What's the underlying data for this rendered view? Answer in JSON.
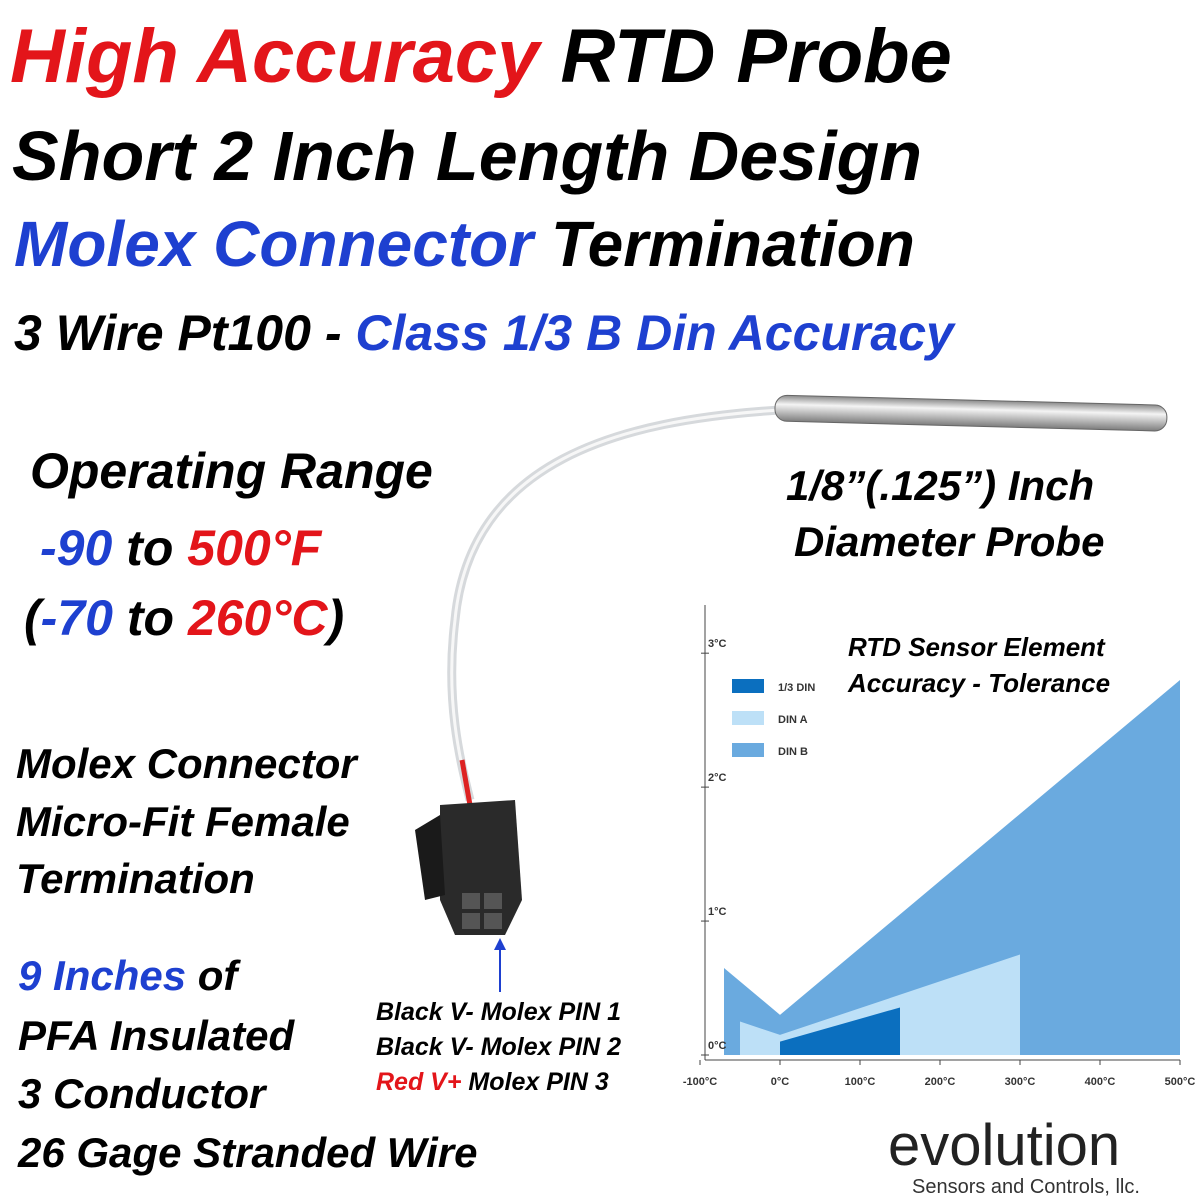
{
  "header": {
    "line1": [
      "High Accuracy",
      "RTD Probe"
    ],
    "line2": "Short 2 Inch Length Design",
    "line3": [
      "Molex Connector",
      "Termination"
    ],
    "line4": [
      "3 Wire Pt100",
      "-",
      "Class 1/3 B Din Accuracy"
    ]
  },
  "operating_range": {
    "label": "Operating Range",
    "fahrenheit": [
      "-90",
      "to",
      "500°F"
    ],
    "celsius": [
      "(",
      "-70",
      "to",
      "260°C",
      ")"
    ]
  },
  "probe": [
    "1/8”(.125”) Inch",
    "Diameter Probe"
  ],
  "connector": [
    "Molex Connector",
    "Micro-Fit Female",
    "Termination"
  ],
  "wire": {
    "line1": [
      "9 Inches",
      "of"
    ],
    "lines": [
      "PFA Insulated",
      "3 Conductor",
      "26 Gage Stranded Wire"
    ]
  },
  "pins": [
    [
      "Black V-",
      "Molex PIN 1"
    ],
    [
      "Black V-",
      "Molex PIN 2"
    ],
    [
      "Red V+",
      "Molex PIN 3"
    ]
  ],
  "logo": {
    "name": "evolution",
    "tagline": "Sensors and Controls, llc."
  },
  "chart_data": {
    "type": "area",
    "title": [
      "RTD Sensor Element",
      "Accuracy - Tolerance"
    ],
    "xlim": [
      -100,
      500
    ],
    "xticks": [
      {
        "value": -100,
        "label": "-100°C"
      },
      {
        "value": 0,
        "label": "0°C"
      },
      {
        "value": 100,
        "label": "100°C"
      },
      {
        "value": 200,
        "label": "200°C"
      },
      {
        "value": 300,
        "label": "300°C"
      },
      {
        "value": 400,
        "label": "400°C"
      },
      {
        "value": 500,
        "label": "500°C"
      }
    ],
    "ylim": [
      0,
      3.3
    ],
    "yticks": [
      {
        "value": 0,
        "label": "0°C"
      },
      {
        "value": 1,
        "label": "1°C"
      },
      {
        "value": 2,
        "label": "2°C"
      },
      {
        "value": 3,
        "label": "3°C"
      }
    ],
    "legend": "top-left",
    "series": [
      {
        "name": "1/3 DIN",
        "color": "#0b6fbf",
        "x": [
          0,
          150
        ],
        "values": [
          0.1,
          0.355
        ]
      },
      {
        "name": "DIN A",
        "color": "#bde0f7",
        "x": [
          -50,
          0,
          300
        ],
        "values": [
          0.25,
          0.15,
          0.75
        ]
      },
      {
        "name": "DIN B",
        "color": "#6aaadf",
        "x": [
          -70,
          0,
          500
        ],
        "values": [
          0.65,
          0.3,
          2.8
        ]
      }
    ]
  }
}
